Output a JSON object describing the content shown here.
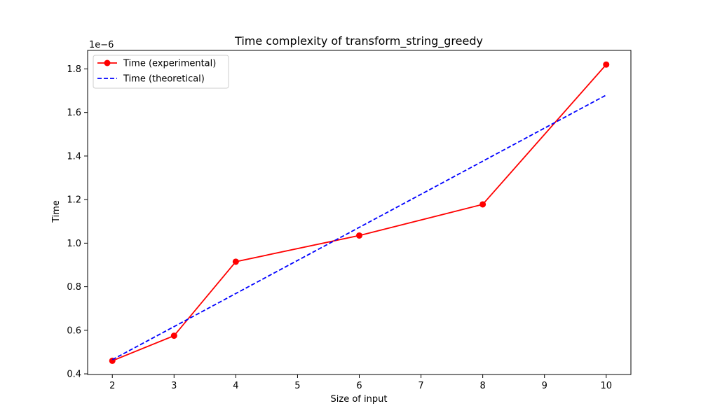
{
  "chart_data": {
    "type": "line",
    "title": "Time complexity of transform_string_greedy",
    "xlabel": "Size of input",
    "ylabel": "Time",
    "y_offset_label": "1e−6",
    "xlim": [
      1.6,
      10.4
    ],
    "ylim": [
      0.397,
      1.885
    ],
    "x_ticks": [
      2,
      3,
      4,
      5,
      6,
      7,
      8,
      9,
      10
    ],
    "y_ticks": [
      0.4,
      0.6,
      0.8,
      1.0,
      1.2,
      1.4,
      1.6,
      1.8
    ],
    "y_tick_labels": [
      "0.4",
      "0.6",
      "0.8",
      "1.0",
      "1.2",
      "1.4",
      "1.6",
      "1.8"
    ],
    "grid": false,
    "legend_position": "top-left",
    "series": [
      {
        "name": "Time (experimental)",
        "color": "#ff0000",
        "style": "solid",
        "marker": "circle",
        "x": [
          2,
          3,
          4,
          6,
          8,
          10
        ],
        "y": [
          0.46,
          0.575,
          0.915,
          1.035,
          1.178,
          1.82
        ]
      },
      {
        "name": "Time (theoretical)",
        "color": "#0000ff",
        "style": "dashed",
        "marker": "none",
        "x": [
          2,
          10
        ],
        "y": [
          0.465,
          1.68
        ]
      }
    ]
  }
}
